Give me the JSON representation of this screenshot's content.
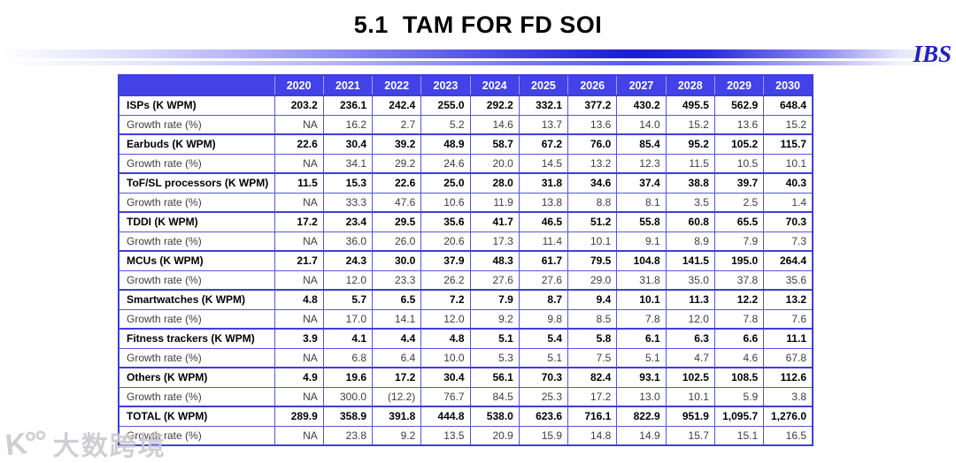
{
  "title": "5.1  TAM FOR FD SOI",
  "logo_text": "IBS",
  "watermark": {
    "glyph": "K°°",
    "text": "大数跨境"
  },
  "colors": {
    "header_bg": "#4242e8",
    "border_blue": "#3f3fd6",
    "logo_blue": "#2121bd"
  },
  "table": {
    "corner_label": "",
    "year_headers": [
      "2020",
      "2021",
      "2022",
      "2023",
      "2024",
      "2025",
      "2026",
      "2027",
      "2028",
      "2029",
      "2030"
    ],
    "rows": [
      {
        "label": "ISPs (K WPM)",
        "bold": true,
        "values": [
          "203.2",
          "236.1",
          "242.4",
          "255.0",
          "292.2",
          "332.1",
          "377.2",
          "430.2",
          "495.5",
          "562.9",
          "648.4"
        ]
      },
      {
        "label": "Growth rate (%)",
        "bold": false,
        "values": [
          "NA",
          "16.2",
          "2.7",
          "5.2",
          "14.6",
          "13.7",
          "13.6",
          "14.0",
          "15.2",
          "13.6",
          "15.2"
        ]
      },
      {
        "label": "Earbuds (K WPM)",
        "bold": true,
        "values": [
          "22.6",
          "30.4",
          "39.2",
          "48.9",
          "58.7",
          "67.2",
          "76.0",
          "85.4",
          "95.2",
          "105.2",
          "115.7"
        ]
      },
      {
        "label": "Growth rate (%)",
        "bold": false,
        "values": [
          "NA",
          "34.1",
          "29.2",
          "24.6",
          "20.0",
          "14.5",
          "13.2",
          "12.3",
          "11.5",
          "10.5",
          "10.1"
        ]
      },
      {
        "label": "ToF/SL processors (K WPM)",
        "bold": true,
        "values": [
          "11.5",
          "15.3",
          "22.6",
          "25.0",
          "28.0",
          "31.8",
          "34.6",
          "37.4",
          "38.8",
          "39.7",
          "40.3"
        ]
      },
      {
        "label": "Growth rate (%)",
        "bold": false,
        "values": [
          "NA",
          "33.3",
          "47.6",
          "10.6",
          "11.9",
          "13.8",
          "8.8",
          "8.1",
          "3.5",
          "2.5",
          "1.4"
        ]
      },
      {
        "label": "TDDI (K WPM)",
        "bold": true,
        "values": [
          "17.2",
          "23.4",
          "29.5",
          "35.6",
          "41.7",
          "46.5",
          "51.2",
          "55.8",
          "60.8",
          "65.5",
          "70.3"
        ]
      },
      {
        "label": "Growth rate (%)",
        "bold": false,
        "values": [
          "NA",
          "36.0",
          "26.0",
          "20.6",
          "17.3",
          "11.4",
          "10.1",
          "9.1",
          "8.9",
          "7.9",
          "7.3"
        ]
      },
      {
        "label": "MCUs (K WPM)",
        "bold": true,
        "values": [
          "21.7",
          "24.3",
          "30.0",
          "37.9",
          "48.3",
          "61.7",
          "79.5",
          "104.8",
          "141.5",
          "195.0",
          "264.4"
        ]
      },
      {
        "label": "Growth rate (%)",
        "bold": false,
        "values": [
          "NA",
          "12.0",
          "23.3",
          "26.2",
          "27.6",
          "27.6",
          "29.0",
          "31.8",
          "35.0",
          "37.8",
          "35.6"
        ]
      },
      {
        "label": "Smartwatches (K WPM)",
        "bold": true,
        "values": [
          "4.8",
          "5.7",
          "6.5",
          "7.2",
          "7.9",
          "8.7",
          "9.4",
          "10.1",
          "11.3",
          "12.2",
          "13.2"
        ]
      },
      {
        "label": "Growth rate (%)",
        "bold": false,
        "values": [
          "NA",
          "17.0",
          "14.1",
          "12.0",
          "9.2",
          "9.8",
          "8.5",
          "7.8",
          "12.0",
          "7.8",
          "7.6"
        ]
      },
      {
        "label": "Fitness trackers (K WPM)",
        "bold": true,
        "values": [
          "3.9",
          "4.1",
          "4.4",
          "4.8",
          "5.1",
          "5.4",
          "5.8",
          "6.1",
          "6.3",
          "6.6",
          "11.1"
        ]
      },
      {
        "label": "Growth rate (%)",
        "bold": false,
        "values": [
          "NA",
          "6.8",
          "6.4",
          "10.0",
          "5.3",
          "5.1",
          "7.5",
          "5.1",
          "4.7",
          "4.6",
          "67.8"
        ]
      },
      {
        "label": "Others (K WPM)",
        "bold": true,
        "values": [
          "4.9",
          "19.6",
          "17.2",
          "30.4",
          "56.1",
          "70.3",
          "82.4",
          "93.1",
          "102.5",
          "108.5",
          "112.6"
        ]
      },
      {
        "label": "Growth rate (%)",
        "bold": false,
        "values": [
          "NA",
          "300.0",
          "(12.2)",
          "76.7",
          "84.5",
          "25.3",
          "17.2",
          "13.0",
          "10.1",
          "5.9",
          "3.8"
        ]
      },
      {
        "label": "TOTAL (K WPM)",
        "bold": true,
        "values": [
          "289.9",
          "358.9",
          "391.8",
          "444.8",
          "538.0",
          "623.6",
          "716.1",
          "822.9",
          "951.9",
          "1,095.7",
          "1,276.0"
        ]
      },
      {
        "label": "Growth rate (%)",
        "bold": false,
        "values": [
          "NA",
          "23.8",
          "9.2",
          "13.5",
          "20.9",
          "15.9",
          "14.8",
          "14.9",
          "15.7",
          "15.1",
          "16.5"
        ]
      }
    ]
  }
}
